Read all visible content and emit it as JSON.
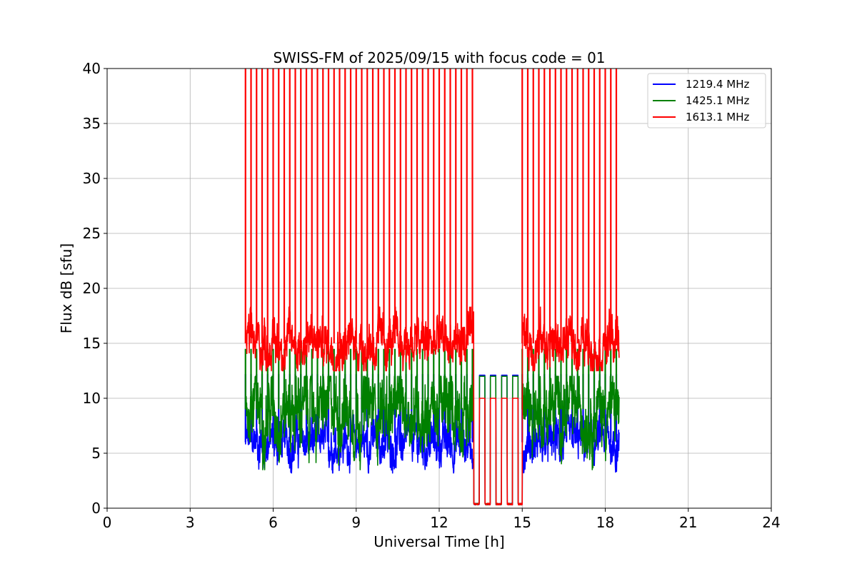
{
  "chart_data": {
    "type": "line",
    "title": "SWISS-FM of 2025/09/15 with focus code = 01",
    "xlabel": "Universal Time [h]",
    "ylabel": "Flux dB [sfu]",
    "xlim": [
      0,
      24
    ],
    "ylim": [
      0,
      40
    ],
    "xticks": [
      "0",
      "3",
      "6",
      "9",
      "12",
      "15",
      "18",
      "21",
      "24"
    ],
    "yticks": [
      "0",
      "5",
      "10",
      "15",
      "20",
      "25",
      "30",
      "35",
      "40"
    ],
    "grid": true,
    "legend_position": "top-right",
    "observation_start_h": 5.0,
    "observation_end_h": 18.5,
    "calibration_window_h": [
      13.25,
      15.0
    ],
    "series": [
      {
        "name": "1219.4 MHz",
        "color": "#0000ff",
        "baseline_db": 6.0,
        "noise_range_db": [
          3.2,
          8.5
        ],
        "calibration_low_db": 0.3,
        "calibration_high_db": 12.1,
        "spike_top_db": 12.2
      },
      {
        "name": "1425.1 MHz",
        "color": "#008000",
        "baseline_db": 9.0,
        "noise_range_db": [
          3.5,
          12.0
        ],
        "calibration_low_db": 0.3,
        "calibration_high_db": 12.0,
        "spike_top_db": 14.5
      },
      {
        "name": "1613.1 MHz",
        "color": "#ff0000",
        "baseline_db": 15.0,
        "noise_range_db": [
          12.5,
          18.3
        ],
        "calibration_low_db": 0.3,
        "calibration_high_db": 10.0,
        "spike_top_db": 40.0
      }
    ]
  }
}
